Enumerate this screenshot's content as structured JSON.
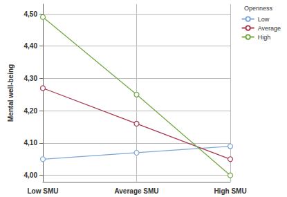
{
  "chart_data": {
    "type": "line",
    "y_label": "Mental well-being",
    "legend_title": "Openness",
    "categories": [
      "Low SMU",
      "Average SMU",
      "High SMU"
    ],
    "series": [
      {
        "name": "Low",
        "color": "#7ea6d9",
        "marker": "circle",
        "values": [
          4.05,
          4.07,
          4.09
        ]
      },
      {
        "name": "Average",
        "color": "#a8394f",
        "marker": "circle",
        "values": [
          4.27,
          4.16,
          4.05
        ]
      },
      {
        "name": "High",
        "color": "#74a844",
        "marker": "circle",
        "values": [
          4.49,
          4.25,
          4.0
        ]
      }
    ],
    "ylim": [
      3.98,
      4.53
    ],
    "yticks": [
      {
        "value": 4.0,
        "label": "4,00"
      },
      {
        "value": 4.1,
        "label": "4,10"
      },
      {
        "value": 4.2,
        "label": "4,20"
      },
      {
        "value": 4.3,
        "label": "4,30"
      },
      {
        "value": 4.4,
        "label": "4,40"
      },
      {
        "value": 4.5,
        "label": "4,50"
      }
    ],
    "grid": true,
    "legend": "top-right"
  }
}
